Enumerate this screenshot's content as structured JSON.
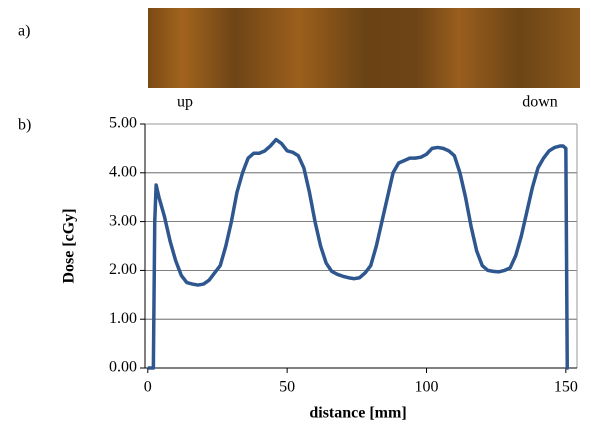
{
  "panel_labels": [
    "a)",
    "b)"
  ],
  "film": {
    "labels": [
      "up",
      "down"
    ]
  },
  "chart_data": {
    "type": "line",
    "x_label": "distance [mm]",
    "y_label": "Dose [cGy]",
    "x": [
      0,
      1,
      2,
      2.5,
      3,
      4,
      6,
      8,
      10,
      12,
      14,
      16,
      18,
      20,
      22,
      24,
      26,
      28,
      30,
      32,
      34,
      36,
      38,
      40,
      42,
      44,
      46,
      48,
      50,
      52,
      54,
      56,
      58,
      60,
      62,
      64,
      66,
      68,
      70,
      72,
      74,
      76,
      78,
      80,
      82,
      84,
      86,
      88,
      90,
      92,
      94,
      96,
      98,
      100,
      102,
      104,
      106,
      108,
      110,
      112,
      114,
      116,
      118,
      120,
      122,
      124,
      126,
      128,
      130,
      132,
      134,
      136,
      138,
      140,
      142,
      144,
      146,
      148,
      149,
      150,
      150.5,
      151
    ],
    "values": [
      0,
      0,
      0,
      3.0,
      3.75,
      3.5,
      3.1,
      2.6,
      2.2,
      1.9,
      1.75,
      1.72,
      1.7,
      1.72,
      1.8,
      1.95,
      2.1,
      2.5,
      3.0,
      3.6,
      4.0,
      4.3,
      4.4,
      4.4,
      4.45,
      4.55,
      4.68,
      4.6,
      4.45,
      4.42,
      4.35,
      4.1,
      3.6,
      3.0,
      2.5,
      2.15,
      1.98,
      1.92,
      1.88,
      1.85,
      1.83,
      1.85,
      1.95,
      2.1,
      2.5,
      3.0,
      3.5,
      4.0,
      4.2,
      4.25,
      4.3,
      4.3,
      4.32,
      4.38,
      4.5,
      4.52,
      4.5,
      4.45,
      4.35,
      4.0,
      3.5,
      2.9,
      2.4,
      2.1,
      2.0,
      1.98,
      1.97,
      2.0,
      2.05,
      2.3,
      2.7,
      3.2,
      3.7,
      4.1,
      4.3,
      4.45,
      4.52,
      4.55,
      4.55,
      4.5,
      0,
      0
    ],
    "color": "#2e578f",
    "xlim": [
      -1,
      154
    ],
    "xticks": [
      0,
      50,
      100,
      150
    ],
    "ylim": [
      0,
      5
    ],
    "yticks": [
      {
        "value": 0,
        "label": "0.00"
      },
      {
        "value": 1,
        "label": "1.00"
      },
      {
        "value": 2,
        "label": "2.00"
      },
      {
        "value": 3,
        "label": "3.00"
      },
      {
        "value": 4,
        "label": "4.00"
      },
      {
        "value": 5,
        "label": "5.00"
      }
    ],
    "grid": true
  }
}
